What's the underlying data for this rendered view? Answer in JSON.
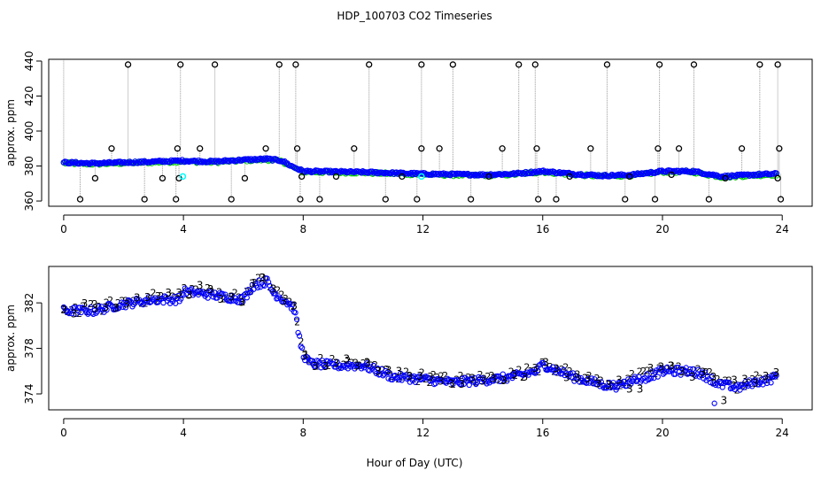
{
  "figure": {
    "title": "HDP_100703  CO2 Timeseries",
    "xlabel": "Hour of Day (UTC)"
  },
  "colors": {
    "outlier": "#000000",
    "primary": "#0000ff",
    "secondary": "#00cc00",
    "highlight": "#00ffff",
    "spike": "#999999"
  },
  "chart_data": [
    {
      "type": "scatter",
      "ylabel": "approx. ppm",
      "xlim": [
        -0.5,
        25
      ],
      "ylim": [
        357,
        441
      ],
      "xticks": [
        0,
        4,
        8,
        12,
        16,
        20,
        24
      ],
      "yticks": [
        360,
        380,
        400,
        420,
        440
      ],
      "baseline_profile": [
        [
          0,
          382
        ],
        [
          1,
          381.5
        ],
        [
          2,
          382
        ],
        [
          3,
          382.5
        ],
        [
          4,
          383
        ],
        [
          5,
          382.5
        ],
        [
          6,
          383.5
        ],
        [
          6.8,
          384
        ],
        [
          7.3,
          383
        ],
        [
          7.6,
          380
        ],
        [
          8,
          377
        ],
        [
          10,
          376.5
        ],
        [
          12,
          375.5
        ],
        [
          14,
          375
        ],
        [
          15,
          375.5
        ],
        [
          16,
          377
        ],
        [
          17,
          375.5
        ],
        [
          18,
          374.5
        ],
        [
          19,
          375
        ],
        [
          20,
          377
        ],
        [
          21,
          377
        ],
        [
          22,
          374
        ],
        [
          23,
          375
        ],
        [
          23.8,
          375.5
        ]
      ],
      "outliers_high": [
        2.15,
        3.9,
        5.05,
        7.2,
        7.75,
        10.2,
        11.95,
        13.0,
        15.2,
        15.75,
        18.15,
        19.9,
        21.05,
        23.25,
        23.85
      ],
      "outliers_mid": [
        1.6,
        3.8,
        4.55,
        6.75,
        7.8,
        9.7,
        11.95,
        12.55,
        14.65,
        15.8,
        17.6,
        19.85,
        20.55,
        22.65,
        23.9
      ],
      "outliers_low": [
        0.55,
        2.7,
        3.75,
        5.6,
        7.9,
        8.55,
        10.75,
        11.8,
        13.6,
        15.85,
        16.45,
        18.75,
        19.75,
        21.55,
        23.95
      ],
      "outliers_near": [
        [
          1.05,
          373
        ],
        [
          3.3,
          373
        ],
        [
          3.85,
          373
        ],
        [
          6.05,
          373
        ],
        [
          7.95,
          374
        ],
        [
          9.1,
          374
        ],
        [
          11.3,
          374
        ],
        [
          14.2,
          374
        ],
        [
          16.9,
          374
        ],
        [
          18.9,
          374
        ],
        [
          20.3,
          375
        ],
        [
          22.1,
          373
        ],
        [
          23.85,
          373
        ]
      ],
      "highlight_points": [
        [
          3.98,
          374
        ],
        [
          11.95,
          374
        ]
      ]
    },
    {
      "type": "scatter",
      "ylabel": "approx. ppm",
      "xlim": [
        -0.5,
        25
      ],
      "ylim": [
        372.6,
        385.2
      ],
      "xticks": [
        0,
        4,
        8,
        12,
        16,
        20,
        24
      ],
      "yticks": [
        374,
        378,
        382
      ],
      "profile": [
        [
          0,
          381.3
        ],
        [
          1,
          381.3
        ],
        [
          2,
          381.9
        ],
        [
          3,
          382.3
        ],
        [
          3.9,
          382.3
        ],
        [
          4,
          383.0
        ],
        [
          5,
          382.7
        ],
        [
          6,
          382.3
        ],
        [
          6.3,
          383.5
        ],
        [
          6.8,
          383.9
        ],
        [
          7.0,
          382.9
        ],
        [
          7.5,
          382.0
        ],
        [
          7.7,
          381.5
        ],
        [
          7.8,
          380
        ],
        [
          7.9,
          378.5
        ],
        [
          8.0,
          377.5
        ],
        [
          8.2,
          376.7
        ],
        [
          9.0,
          376.5
        ],
        [
          10.0,
          376.5
        ],
        [
          11.0,
          375.5
        ],
        [
          12.0,
          375.3
        ],
        [
          13.0,
          375.0
        ],
        [
          14.0,
          375.2
        ],
        [
          15.0,
          375.5
        ],
        [
          15.8,
          376.0
        ],
        [
          16.0,
          376.6
        ],
        [
          17.0,
          375.5
        ],
        [
          18.0,
          374.8
        ],
        [
          18.5,
          374.7
        ],
        [
          19.0,
          375.2
        ],
        [
          19.5,
          375.5
        ],
        [
          20.0,
          376.0
        ],
        [
          21.0,
          376.0
        ],
        [
          21.5,
          375.5
        ],
        [
          22.0,
          374.8
        ],
        [
          22.5,
          374.5
        ],
        [
          23.0,
          375.0
        ],
        [
          23.5,
          375.2
        ],
        [
          23.8,
          375.5
        ]
      ],
      "label_digits": [
        "3",
        "2"
      ]
    }
  ]
}
